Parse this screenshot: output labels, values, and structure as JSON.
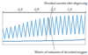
{
  "chart_data": {
    "type": "line",
    "annotations": [
      "Residual current after degassing",
      "Waves of reduction of dissolved oxygen"
    ],
    "x": [
      0,
      -0.05,
      -0.1,
      -0.15,
      -0.2,
      -0.25,
      -0.3,
      -0.35,
      -0.4,
      -0.45,
      -0.5,
      -0.55,
      -0.6,
      -0.65,
      -0.7,
      -0.75,
      -0.8,
      -0.85,
      -0.9,
      -0.95,
      -1.0,
      -1.05,
      -1.1,
      -1.15,
      -1.2,
      -1.25,
      -1.3,
      -1.35,
      -1.4,
      -1.45,
      -1.5,
      -1.55,
      -1.6,
      -1.65,
      -1.7,
      -1.75,
      -1.8,
      -1.85,
      -1.9,
      -1.95,
      -2.0
    ],
    "series": [
      {
        "color": "#5aa7dd",
        "values": [
          5.0,
          1.8,
          5.2,
          1.9,
          5.5,
          2.0,
          5.8,
          2.1,
          6.2,
          2.2,
          6.6,
          2.3,
          7.0,
          2.4,
          7.4,
          2.5,
          7.7,
          2.6,
          8.0,
          2.7,
          8.2,
          2.8,
          8.4,
          2.9,
          8.6,
          3.0,
          8.7,
          3.0,
          8.8,
          3.1,
          8.9,
          3.1,
          9.0,
          3.2,
          9.0,
          3.2,
          9.1,
          3.3,
          9.1,
          3.3,
          9.2
        ]
      },
      {
        "color": "#2a6fa8",
        "values": [
          1.0,
          1.0,
          1.0,
          1.0,
          1.0,
          1.0,
          1.0,
          1.0,
          1.0,
          1.0,
          1.1,
          1.1,
          1.1,
          1.1,
          1.1,
          1.1,
          1.1,
          1.1,
          1.1,
          1.1,
          1.2,
          1.2,
          1.2,
          1.2,
          1.2,
          1.2,
          1.2,
          1.2,
          1.2,
          1.2,
          1.3,
          1.3,
          1.3,
          1.3,
          1.3,
          1.4,
          1.4,
          1.4,
          1.5,
          1.5,
          1.6
        ]
      }
    ],
    "xlim": [
      0,
      -2.0
    ],
    "xticks": [
      -0.4,
      -0.8,
      -1.2,
      -1.6
    ],
    "ylim": [
      0,
      10
    ],
    "tick_labels": "x",
    "grid": false
  }
}
